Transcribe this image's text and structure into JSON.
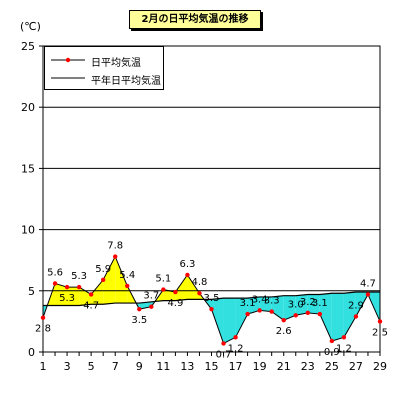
{
  "chart_data": {
    "type": "line",
    "title": "2月の日平均気温の推移",
    "ylabel": "(℃)",
    "ylim": [
      0,
      25
    ],
    "yticks": [
      0,
      5,
      10,
      15,
      20,
      25
    ],
    "xlim": [
      1,
      29
    ],
    "xticks": [
      1,
      3,
      5,
      7,
      9,
      11,
      13,
      15,
      17,
      19,
      21,
      23,
      25,
      27,
      29
    ],
    "grid": true,
    "legend_position": "top-left",
    "x": [
      1,
      2,
      3,
      4,
      5,
      6,
      7,
      8,
      9,
      10,
      11,
      12,
      13,
      14,
      15,
      16,
      17,
      18,
      19,
      20,
      21,
      22,
      23,
      24,
      25,
      26,
      27,
      28,
      29
    ],
    "series": [
      {
        "name": "日平均気温",
        "values": [
          2.8,
          5.6,
          5.3,
          5.3,
          4.7,
          5.9,
          7.8,
          5.4,
          3.5,
          3.7,
          5.1,
          4.9,
          6.3,
          4.8,
          3.5,
          0.7,
          1.2,
          3.1,
          3.4,
          3.3,
          2.6,
          3.0,
          3.2,
          3.1,
          0.9,
          1.2,
          2.9,
          4.7,
          2.5
        ],
        "labels": [
          "2.8",
          "5.6",
          "5.3",
          "5.3",
          "4.7",
          "5.9",
          "7.8",
          "5.4",
          "3.5",
          "3.7",
          "5.1",
          "4.9",
          "6.3",
          "4.8",
          "3.5",
          "0.7",
          "1.2",
          "3.1",
          "3.4",
          "3.3",
          "2.6",
          "3.0",
          "3.2",
          "3.1",
          "0.9",
          "1.2",
          "2.9",
          "4.7",
          "2.5"
        ],
        "color": "#000000",
        "marker_color": "#ff0000"
      },
      {
        "name": "平年日平均気温",
        "values": [
          3.8,
          3.8,
          3.8,
          3.8,
          3.9,
          3.9,
          4.0,
          4.0,
          4.0,
          4.1,
          4.2,
          4.2,
          4.3,
          4.3,
          4.3,
          4.4,
          4.4,
          4.4,
          4.5,
          4.5,
          4.6,
          4.6,
          4.7,
          4.7,
          4.8,
          4.8,
          4.9,
          4.9,
          4.9
        ],
        "color": "#000000"
      }
    ],
    "fill_above_color": "#ffff00",
    "fill_below_color": "#33e0e0"
  }
}
